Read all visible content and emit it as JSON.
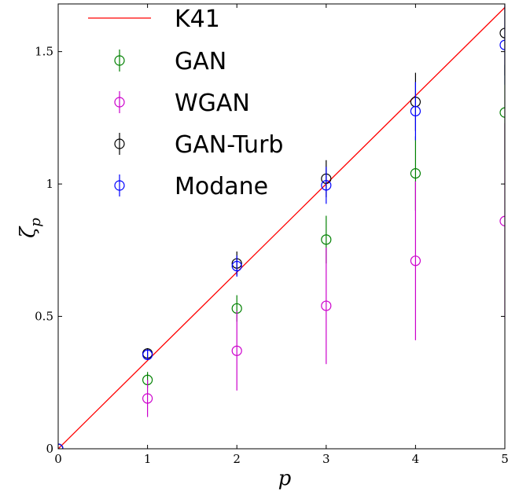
{
  "chart_data": {
    "type": "scatter",
    "xlabel": "p",
    "ylabel": "ζ",
    "ylabel_sub": "p",
    "xlim": [
      0,
      5
    ],
    "ylim": [
      0,
      1.68
    ],
    "x_ticks": [
      0,
      1,
      2,
      3,
      4,
      5
    ],
    "x_tick_labels": [
      "0",
      "1",
      "2",
      "3",
      "4",
      "5"
    ],
    "y_ticks": [
      0,
      0.5,
      1,
      1.5
    ],
    "y_tick_labels": [
      "0",
      "0.5",
      "1",
      "1.5"
    ],
    "grid": false,
    "legend_position": "top-left",
    "line": {
      "name": "K41",
      "color": "#ff0000",
      "x": [
        0,
        5
      ],
      "y": [
        0,
        1.6667
      ]
    },
    "series": [
      {
        "name": "GAN",
        "color": "#008000",
        "x": [
          0,
          1,
          2,
          3,
          4,
          5
        ],
        "y": [
          0,
          0.26,
          0.53,
          0.79,
          1.04,
          1.27
        ],
        "err": [
          0,
          0.03,
          0.05,
          0.09,
          0.14,
          0.18
        ]
      },
      {
        "name": "WGAN",
        "color": "#cc00cc",
        "x": [
          0,
          1,
          2,
          3,
          4,
          5
        ],
        "y": [
          0,
          0.19,
          0.37,
          0.54,
          0.71,
          0.86
        ],
        "err": [
          0,
          0.07,
          0.15,
          0.22,
          0.3,
          0.37
        ]
      },
      {
        "name": "GAN-Turb",
        "color": "#000000",
        "x": [
          0,
          1,
          2,
          3,
          4,
          5
        ],
        "y": [
          0,
          0.36,
          0.7,
          1.02,
          1.31,
          1.57
        ],
        "err": [
          0,
          0.02,
          0.045,
          0.07,
          0.11,
          0.16
        ]
      },
      {
        "name": "Modane",
        "color": "#0000ff",
        "x": [
          0,
          1,
          2,
          3,
          4,
          5
        ],
        "y": [
          0,
          0.355,
          0.69,
          0.995,
          1.275,
          1.525
        ],
        "err": [
          0,
          0.02,
          0.04,
          0.07,
          0.11,
          0.15
        ]
      }
    ]
  }
}
